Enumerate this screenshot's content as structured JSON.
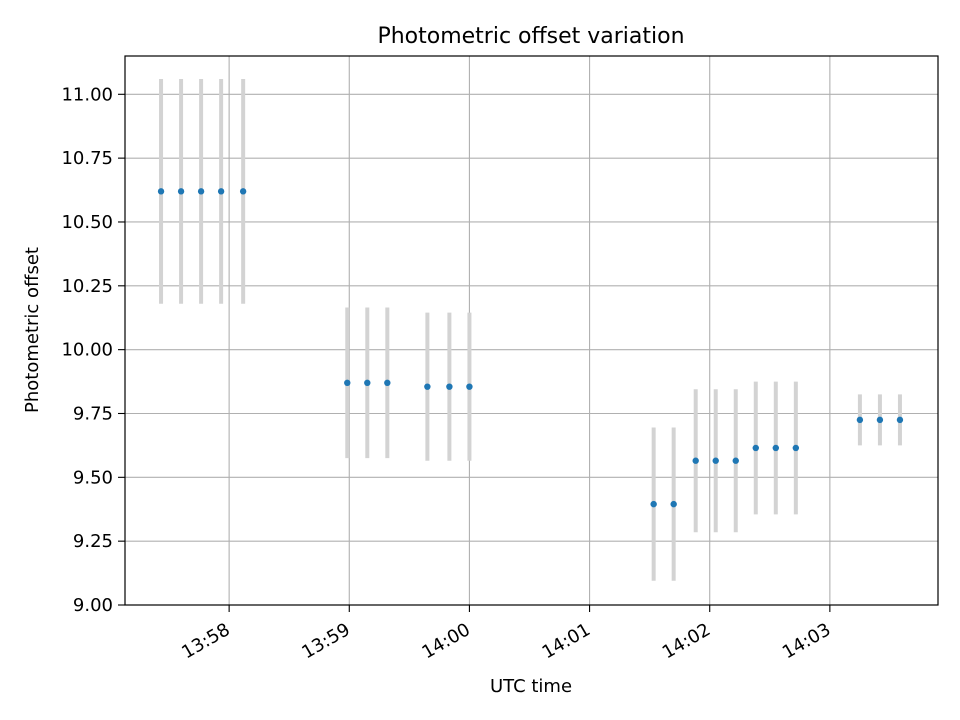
{
  "chart_data": {
    "type": "scatter",
    "title": "Photometric offset variation",
    "xlabel": "UTC time",
    "ylabel": "Photometric offset",
    "x_ticks": [
      "13:58",
      "13:59",
      "14:00",
      "14:01",
      "14:02",
      "14:03"
    ],
    "x_tick_values": [
      "13:58:00",
      "13:59:00",
      "14:00:00",
      "14:01:00",
      "14:02:00",
      "14:03:00"
    ],
    "xlim": [
      "13:57:08",
      "14:03:54"
    ],
    "y_ticks": [
      "9.00",
      "9.25",
      "9.50",
      "9.75",
      "10.00",
      "10.25",
      "10.50",
      "10.75",
      "11.00"
    ],
    "ylim": [
      9.0,
      11.15
    ],
    "grid": true,
    "series": [
      {
        "marker_color": "#1f77b4",
        "errorbar_color": "#d3d3d3",
        "points": [
          {
            "x": "13:57:26",
            "y": 10.62,
            "yerr": 0.44
          },
          {
            "x": "13:57:36",
            "y": 10.62,
            "yerr": 0.44
          },
          {
            "x": "13:57:46",
            "y": 10.62,
            "yerr": 0.44
          },
          {
            "x": "13:57:56",
            "y": 10.62,
            "yerr": 0.44
          },
          {
            "x": "13:58:07",
            "y": 10.62,
            "yerr": 0.44
          },
          {
            "x": "13:58:59",
            "y": 9.87,
            "yerr": 0.295
          },
          {
            "x": "13:59:09",
            "y": 9.87,
            "yerr": 0.295
          },
          {
            "x": "13:59:19",
            "y": 9.87,
            "yerr": 0.295
          },
          {
            "x": "13:59:39",
            "y": 9.855,
            "yerr": 0.29
          },
          {
            "x": "13:59:50",
            "y": 9.855,
            "yerr": 0.29
          },
          {
            "x": "14:00:00",
            "y": 9.855,
            "yerr": 0.29
          },
          {
            "x": "14:01:32",
            "y": 9.395,
            "yerr": 0.3
          },
          {
            "x": "14:01:42",
            "y": 9.395,
            "yerr": 0.3
          },
          {
            "x": "14:01:53",
            "y": 9.565,
            "yerr": 0.28
          },
          {
            "x": "14:02:03",
            "y": 9.565,
            "yerr": 0.28
          },
          {
            "x": "14:02:13",
            "y": 9.565,
            "yerr": 0.28
          },
          {
            "x": "14:02:23",
            "y": 9.615,
            "yerr": 0.26
          },
          {
            "x": "14:02:33",
            "y": 9.615,
            "yerr": 0.26
          },
          {
            "x": "14:02:43",
            "y": 9.615,
            "yerr": 0.26
          },
          {
            "x": "14:03:15",
            "y": 9.725,
            "yerr": 0.1
          },
          {
            "x": "14:03:25",
            "y": 9.725,
            "yerr": 0.1
          },
          {
            "x": "14:03:35",
            "y": 9.725,
            "yerr": 0.1
          }
        ]
      }
    ]
  }
}
